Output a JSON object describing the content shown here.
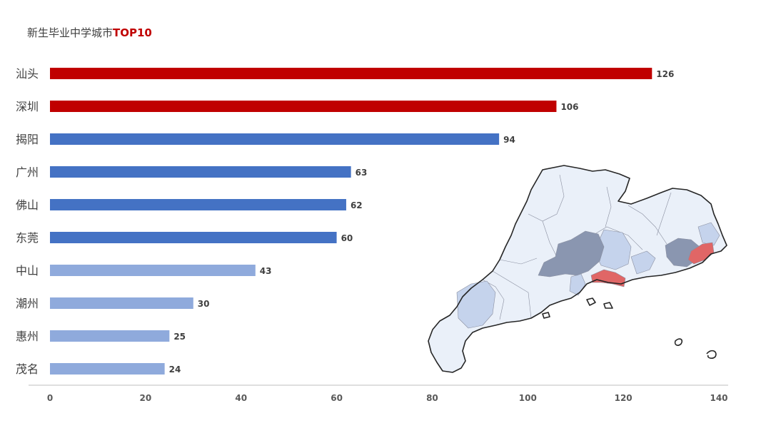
{
  "chart_data": {
    "type": "bar",
    "orientation": "horizontal",
    "title": "新生毕业中学城市",
    "title_highlight": "TOP10",
    "categories": [
      "汕头",
      "深圳",
      "揭阳",
      "广州",
      "佛山",
      "东莞",
      "中山",
      "潮州",
      "惠州",
      "茂名"
    ],
    "values": [
      126,
      106,
      94,
      63,
      62,
      60,
      43,
      30,
      25,
      24
    ],
    "bar_colors": [
      "#c00000",
      "#c00000",
      "#4472c4",
      "#4472c4",
      "#4472c4",
      "#4472c4",
      "#8faadc",
      "#8faadc",
      "#8faadc",
      "#8faadc"
    ],
    "xlim": [
      0,
      140
    ],
    "xticks": [
      0,
      20,
      40,
      60,
      80,
      100,
      120,
      140
    ],
    "xlabel": "",
    "ylabel": "",
    "grid": false,
    "legend": "none"
  },
  "map": {
    "subject": "Guangdong province",
    "base_color": "#eaf0f9",
    "tier_colors": {
      "top": "#e06666",
      "high": "#8a96b0",
      "mid": "#c5d3ec",
      "low": "#eaf0f9"
    }
  }
}
